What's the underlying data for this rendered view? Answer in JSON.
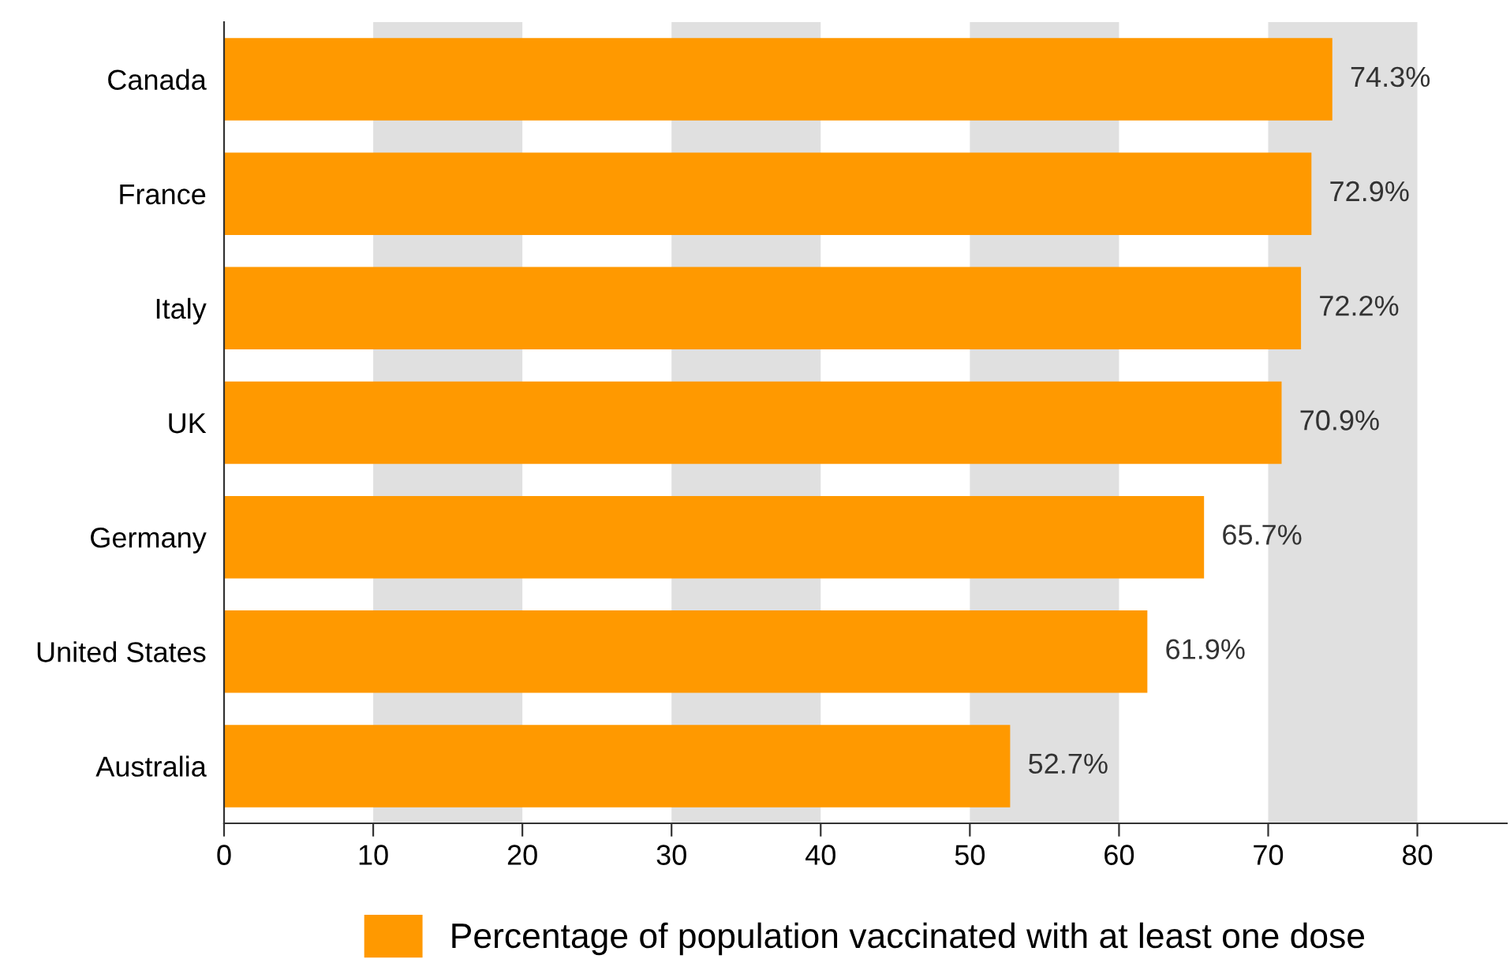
{
  "chart_data": {
    "type": "bar",
    "orientation": "horizontal",
    "categories": [
      "Canada",
      "France",
      "Italy",
      "UK",
      "Germany",
      "United States",
      "Australia"
    ],
    "series": [
      {
        "name": "Percentage of population vaccinated with at least one dose",
        "color": "#ff9900",
        "values": [
          74.3,
          72.9,
          72.2,
          70.9,
          65.7,
          61.9,
          52.7
        ],
        "value_labels": [
          "74.3%",
          "72.9%",
          "72.2%",
          "70.9%",
          "65.7%",
          "61.9%",
          "52.7%"
        ]
      }
    ],
    "xlim": [
      0,
      86
    ],
    "xticks": [
      0,
      10,
      20,
      30,
      40,
      50,
      60,
      70,
      80
    ],
    "bands": [
      {
        "axis": "x",
        "from": 10,
        "to": 20,
        "color": "#e0e0e0"
      },
      {
        "axis": "x",
        "from": 30,
        "to": 40,
        "color": "#e0e0e0"
      },
      {
        "axis": "x",
        "from": 50,
        "to": 60,
        "color": "#e0e0e0"
      },
      {
        "axis": "x",
        "from": 70,
        "to": 80,
        "color": "#e0e0e0"
      }
    ],
    "legend": "bottom"
  }
}
